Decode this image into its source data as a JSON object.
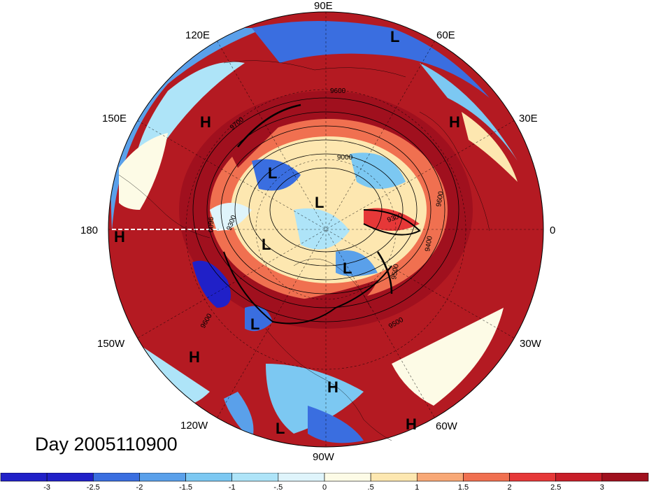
{
  "map": {
    "projection": "polar-stereographic-north",
    "longitude_labels": [
      {
        "text": "90E",
        "lon": "90E"
      },
      {
        "text": "60E",
        "lon": "60E"
      },
      {
        "text": "30E",
        "lon": "30E"
      },
      {
        "text": "0",
        "lon": "0"
      },
      {
        "text": "30W",
        "lon": "30W"
      },
      {
        "text": "60W",
        "lon": "60W"
      },
      {
        "text": "90W",
        "lon": "90W"
      },
      {
        "text": "120W",
        "lon": "120W"
      },
      {
        "text": "150W",
        "lon": "150W"
      },
      {
        "text": "180",
        "lon": "180"
      },
      {
        "text": "150E",
        "lon": "150E"
      },
      {
        "text": "120E",
        "lon": "120E"
      }
    ],
    "pressure_centers": [
      "H",
      "L"
    ],
    "contour_labels": [
      "9600",
      "9700",
      "9000",
      "9300",
      "9500",
      "9400",
      "9600",
      "9500",
      "9600",
      "9300",
      "9600"
    ],
    "day_label": "Day 2005110900"
  },
  "colorbar": {
    "tick_labels": [
      "-3",
      "-2.5",
      "-2",
      "-1.5",
      "-1",
      "-.5",
      "0",
      ".5",
      "1",
      "1.5",
      "2",
      "2.5",
      "3"
    ],
    "colors": [
      "#2020c8",
      "#3a6ee0",
      "#5aa0ea",
      "#7cc8f2",
      "#aee4f8",
      "#dff4fb",
      "#fdfbe6",
      "#fde7b0",
      "#f8a876",
      "#f07050",
      "#e63838",
      "#c81e28",
      "#a0101e"
    ]
  }
}
